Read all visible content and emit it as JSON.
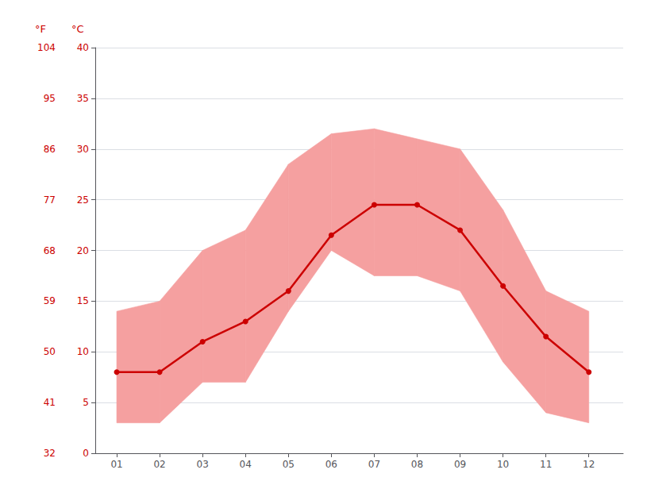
{
  "chart_data": {
    "type": "line",
    "x": [
      1,
      2,
      3,
      4,
      5,
      6,
      7,
      8,
      9,
      10,
      11,
      12
    ],
    "xlim": [
      0.5,
      12.8
    ],
    "xticks": [
      {
        "value": 1,
        "label": "01"
      },
      {
        "value": 2,
        "label": "02"
      },
      {
        "value": 3,
        "label": "03"
      },
      {
        "value": 4,
        "label": "04"
      },
      {
        "value": 5,
        "label": "05"
      },
      {
        "value": 6,
        "label": "06"
      },
      {
        "value": 7,
        "label": "07"
      },
      {
        "value": 8,
        "label": "08"
      },
      {
        "value": 9,
        "label": "09"
      },
      {
        "value": 10,
        "label": "10"
      },
      {
        "value": 11,
        "label": "11"
      },
      {
        "value": 12,
        "label": "12"
      }
    ],
    "ylim": [
      0,
      40
    ],
    "yticks": [
      0,
      5,
      10,
      15,
      20,
      25,
      30,
      35,
      40
    ],
    "y2lim": [
      32,
      104
    ],
    "y2ticks": [
      32,
      41,
      50,
      59,
      68,
      77,
      86,
      95,
      104
    ],
    "grid": true,
    "series": [
      {
        "type": "band",
        "color": "#f5a0a0",
        "low": [
          3,
          3,
          7,
          7,
          14,
          20,
          17.5,
          17.5,
          16,
          9,
          4,
          3
        ],
        "high": [
          14,
          15,
          20,
          22,
          28.5,
          31.5,
          32,
          31,
          30,
          24,
          16,
          14
        ]
      },
      {
        "type": "line",
        "color": "#cc0000",
        "marker": "circle",
        "values": [
          8,
          8,
          11,
          13,
          16,
          21.5,
          24.5,
          24.5,
          22,
          16.5,
          11.5,
          8
        ]
      }
    ],
    "annotations": [
      {
        "text": "°F",
        "color": "#cc0000"
      },
      {
        "text": "°C",
        "color": "#cc0000"
      }
    ]
  }
}
